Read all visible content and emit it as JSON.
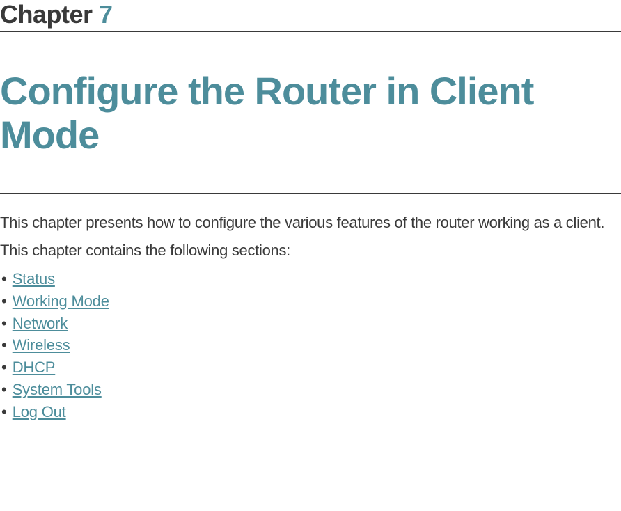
{
  "colors": {
    "text_dark": "#3a3a3a",
    "accent_teal": "#4d8d9b",
    "background": "#ffffff"
  },
  "typography": {
    "chapter_label_size": 36,
    "main_title_size": 56,
    "body_size": 22
  },
  "chapter": {
    "label": "Chapter",
    "number": "7"
  },
  "title": "Configure the Router in Client Mode",
  "intro_paragraph": "This chapter presents how to configure the various features of the router working as a client.",
  "sections_intro": "This chapter contains the following sections:",
  "sections": [
    {
      "label": "Status"
    },
    {
      "label": "Working Mode"
    },
    {
      "label": "Network"
    },
    {
      "label": "Wireless"
    },
    {
      "label": "DHCP"
    },
    {
      "label": "System Tools"
    },
    {
      "label": "Log Out"
    }
  ],
  "bullet_char": "•"
}
